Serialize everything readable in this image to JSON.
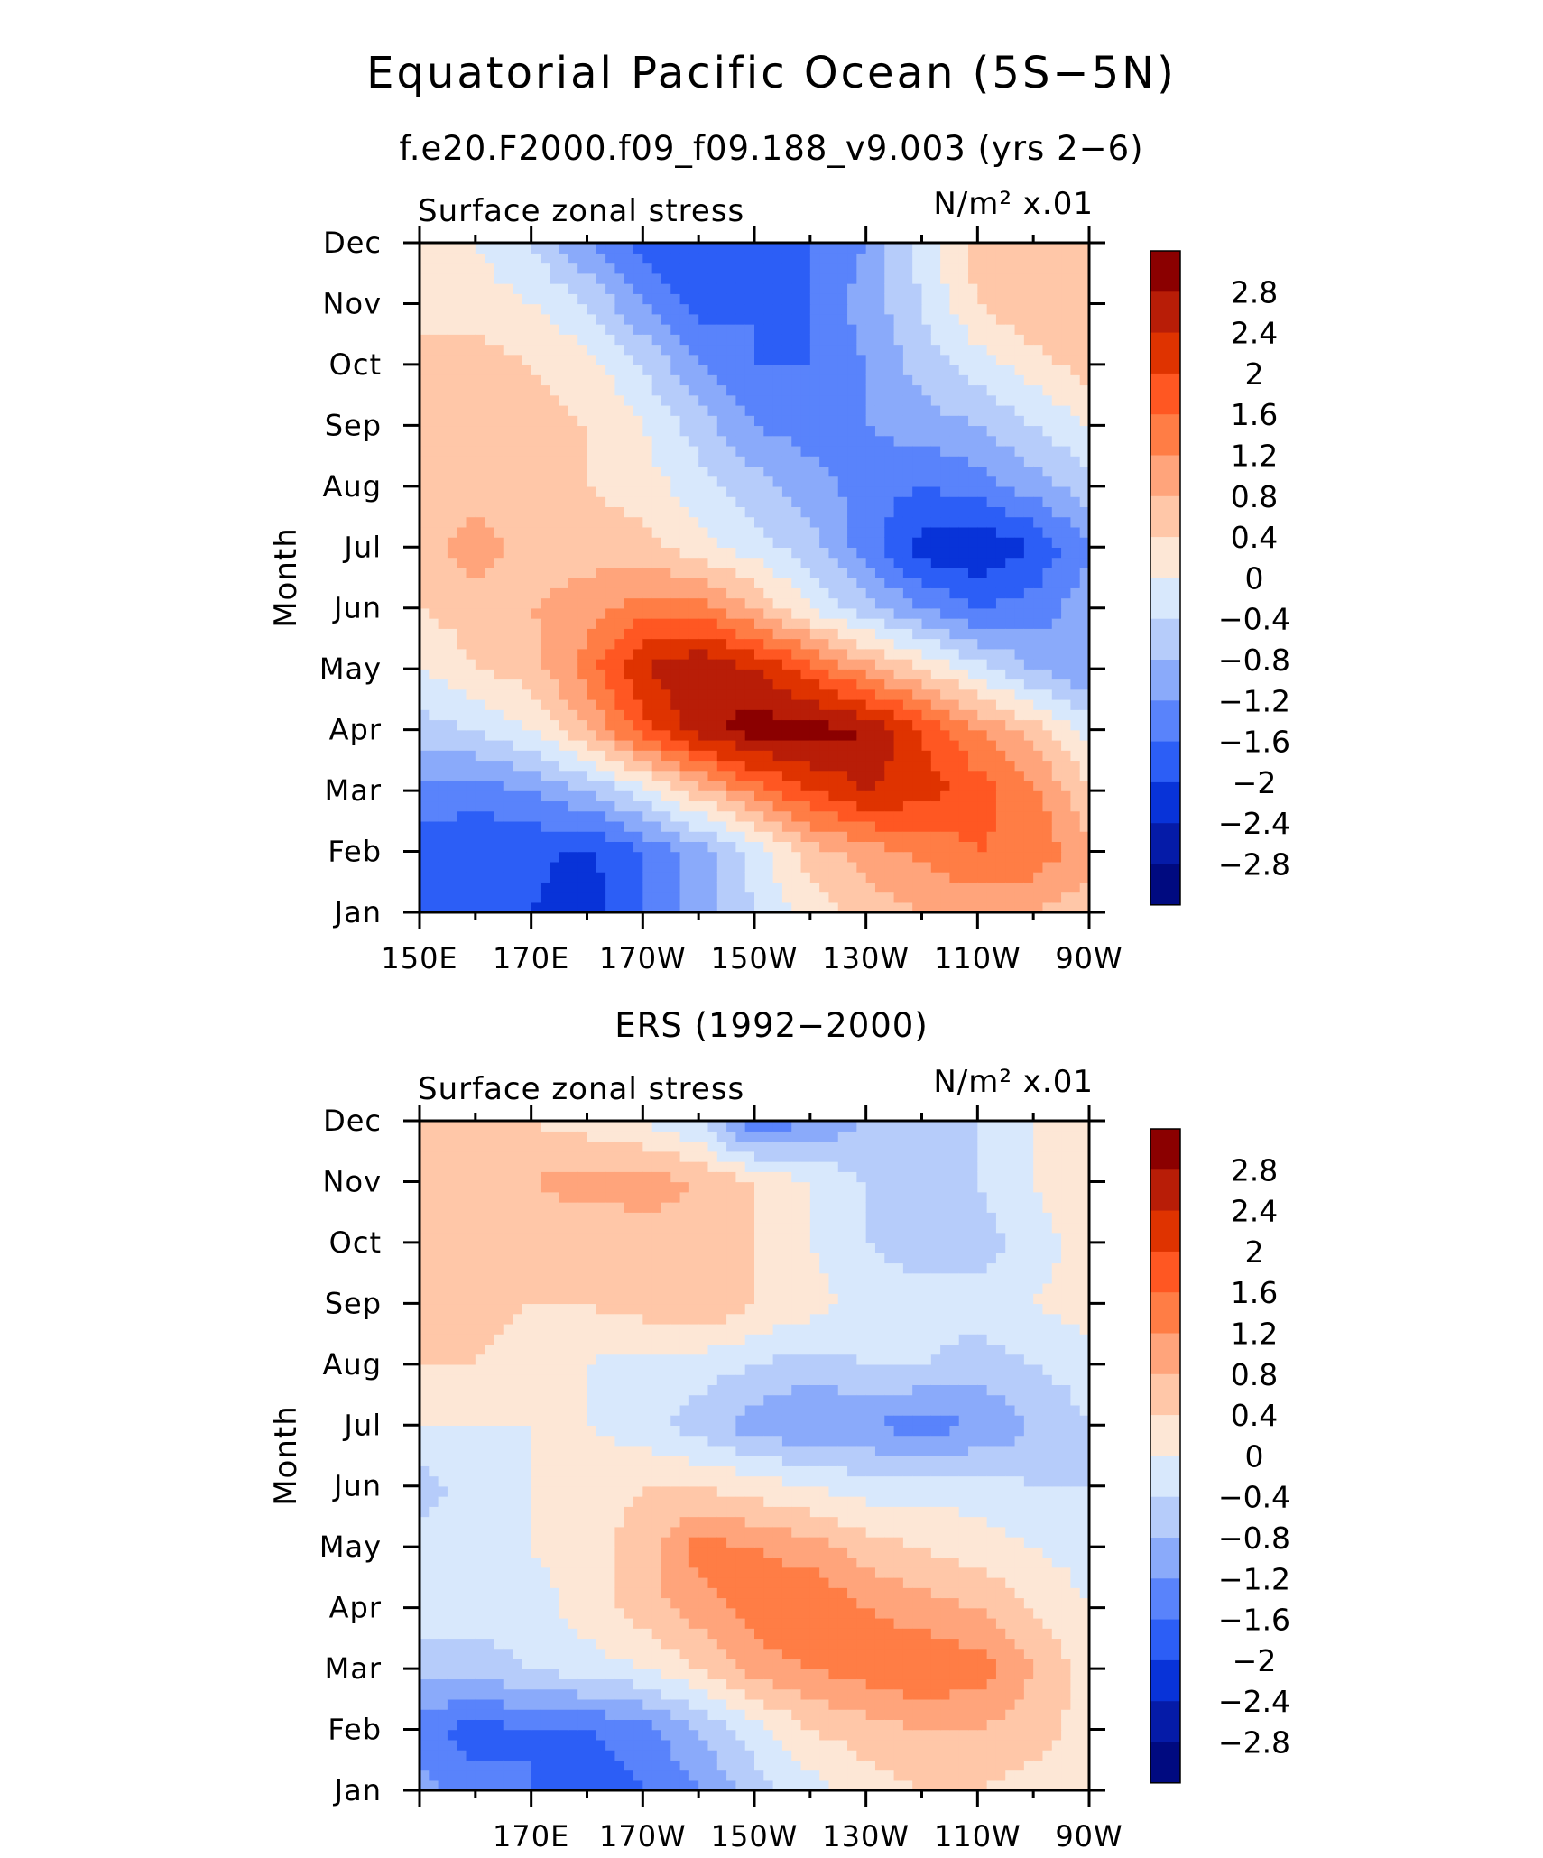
{
  "figure": {
    "title": "Equatorial Pacific Ocean (5S−5N)",
    "subtitle": "f.e20.F2000.f09_f09.188_v9.003 (yrs 2−6)"
  },
  "colorbar": {
    "labels": [
      "2.8",
      "2.4",
      "2",
      "1.6",
      "1.2",
      "0.8",
      "0.4",
      "0",
      "−0.4",
      "−0.8",
      "−1.2",
      "−1.6",
      "−2",
      "−2.4",
      "−2.8"
    ],
    "colors": [
      "#8b0000",
      "#b81d07",
      "#df3300",
      "#ff5722",
      "#ff7d45",
      "#ffa47b",
      "#ffc7a8",
      "#fde7d6",
      "#d8e8fc",
      "#b6ccfa",
      "#8aaafa",
      "#5983fb",
      "#2c5ef6",
      "#0833d8",
      "#051ba8",
      "#000a80"
    ]
  },
  "chart_data": [
    {
      "type": "heatmap",
      "title": "f.e20.F2000.f09_f09.188_v9.003 (yrs 2−6)",
      "left_label": "Surface zonal stress",
      "units_label": "N/m² x.01",
      "ylabel": "Month",
      "xlabel": "",
      "x_ticks": [
        "150E",
        "170E",
        "170W",
        "150W",
        "130W",
        "110W",
        "90W"
      ],
      "y_ticks": [
        "Jan",
        "Feb",
        "Mar",
        "Apr",
        "May",
        "Jun",
        "Jul",
        "Aug",
        "Sep",
        "Oct",
        "Nov",
        "Dec"
      ],
      "x_lon": [
        150,
        160,
        170,
        180,
        190,
        200,
        210,
        220,
        230,
        240,
        250,
        260,
        270
      ],
      "z": [
        [
          -1.6,
          -1.8,
          -2.0,
          -2.2,
          -1.6,
          -1.0,
          -0.4,
          0.2,
          0.6,
          0.8,
          0.9,
          0.8,
          0.6
        ],
        [
          -1.8,
          -2.0,
          -1.9,
          -2.1,
          -1.6,
          -1.0,
          -0.2,
          0.6,
          1.0,
          1.3,
          1.6,
          1.5,
          0.9
        ],
        [
          -1.3,
          -1.4,
          -1.2,
          -0.8,
          -0.2,
          0.6,
          1.4,
          2.0,
          2.4,
          2.2,
          1.8,
          1.3,
          0.5
        ],
        [
          -0.6,
          -0.4,
          0.0,
          0.8,
          1.8,
          2.6,
          3.0,
          3.0,
          2.8,
          2.0,
          1.2,
          0.6,
          -0.2
        ],
        [
          0.0,
          0.4,
          0.6,
          1.4,
          2.4,
          2.8,
          2.4,
          1.8,
          1.0,
          0.4,
          -0.2,
          -0.8,
          -1.2
        ],
        [
          0.4,
          0.6,
          0.8,
          1.0,
          1.4,
          1.4,
          0.8,
          0.0,
          -0.6,
          -1.2,
          -1.6,
          -1.4,
          -1.0
        ],
        [
          0.6,
          1.0,
          0.6,
          0.6,
          0.6,
          0.2,
          -0.2,
          -0.6,
          -1.4,
          -2.2,
          -2.4,
          -2.0,
          -1.2
        ],
        [
          0.4,
          0.6,
          0.6,
          0.4,
          0.2,
          -0.2,
          -0.6,
          -1.0,
          -1.4,
          -1.6,
          -1.4,
          -1.0,
          -0.6
        ],
        [
          0.4,
          0.8,
          0.6,
          0.4,
          0.0,
          -0.6,
          -1.2,
          -1.4,
          -1.2,
          -1.0,
          -0.8,
          -0.4,
          0.0
        ],
        [
          0.4,
          0.6,
          0.4,
          0.2,
          -0.4,
          -1.2,
          -1.6,
          -1.6,
          -1.2,
          -0.6,
          -0.2,
          0.2,
          0.6
        ],
        [
          0.4,
          0.2,
          0.0,
          -0.4,
          -1.2,
          -1.8,
          -1.6,
          -1.6,
          -1.0,
          -0.4,
          0.4,
          0.8,
          0.8
        ],
        [
          0.4,
          0.0,
          -0.4,
          -1.2,
          -1.8,
          -2.0,
          -1.8,
          -1.6,
          -1.2,
          -0.2,
          0.6,
          0.8,
          0.8
        ]
      ]
    },
    {
      "type": "heatmap",
      "title": "ERS (1992−2000)",
      "left_label": "Surface zonal stress",
      "units_label": "N/m² x.01",
      "ylabel": "Month",
      "xlabel": "",
      "x_ticks": [
        "170E",
        "170W",
        "150W",
        "130W",
        "110W",
        "90W"
      ],
      "y_ticks": [
        "Jan",
        "Feb",
        "Mar",
        "Apr",
        "May",
        "Jun",
        "Jul",
        "Aug",
        "Sep",
        "Oct",
        "Nov",
        "Dec"
      ],
      "x_lon": [
        150,
        160,
        170,
        180,
        190,
        200,
        210,
        220,
        230,
        240,
        250,
        260,
        270
      ],
      "z": [
        [
          -1.0,
          -1.4,
          -1.6,
          -1.8,
          -1.6,
          -1.2,
          -0.6,
          -0.2,
          0.2,
          0.4,
          0.4,
          0.2,
          0.0
        ],
        [
          -1.4,
          -1.8,
          -1.6,
          -1.6,
          -1.4,
          -0.8,
          -0.2,
          0.4,
          0.6,
          0.8,
          0.8,
          0.6,
          0.2
        ],
        [
          -0.6,
          -0.6,
          -0.4,
          -0.2,
          0.0,
          0.4,
          1.0,
          1.2,
          1.4,
          1.6,
          1.4,
          0.8,
          0.2
        ],
        [
          -0.2,
          -0.2,
          -0.2,
          0.2,
          0.6,
          1.0,
          1.4,
          1.6,
          1.2,
          1.0,
          0.8,
          0.4,
          0.0
        ],
        [
          -0.2,
          -0.2,
          0.0,
          0.2,
          0.6,
          1.4,
          1.2,
          1.0,
          0.6,
          0.4,
          0.2,
          0.0,
          -0.2
        ],
        [
          -0.6,
          -0.2,
          0.0,
          0.2,
          0.4,
          0.4,
          0.2,
          0.0,
          -0.2,
          -0.2,
          -0.2,
          -0.4,
          -0.4
        ],
        [
          0.0,
          0.0,
          0.0,
          0.0,
          -0.2,
          -0.6,
          -1.0,
          -1.2,
          -1.2,
          -1.4,
          -1.2,
          -0.8,
          -0.4
        ],
        [
          0.4,
          0.4,
          0.2,
          0.0,
          -0.2,
          -0.2,
          -0.4,
          -0.6,
          -0.4,
          -0.4,
          -0.6,
          -0.4,
          -0.2
        ],
        [
          0.4,
          0.6,
          0.4,
          0.4,
          0.6,
          0.8,
          0.4,
          0.2,
          -0.2,
          -0.2,
          -0.2,
          0.0,
          0.2
        ],
        [
          0.4,
          0.6,
          0.6,
          0.4,
          0.6,
          0.6,
          0.4,
          0.0,
          -0.4,
          -0.6,
          -0.6,
          -0.2,
          0.2
        ],
        [
          0.6,
          0.6,
          0.8,
          1.0,
          1.0,
          0.8,
          0.4,
          0.0,
          -0.4,
          -0.6,
          -0.4,
          0.0,
          0.4
        ],
        [
          0.6,
          0.8,
          0.4,
          0.2,
          0.0,
          -0.4,
          -1.6,
          -1.2,
          -0.8,
          -0.6,
          -0.4,
          0.0,
          0.4
        ]
      ]
    }
  ]
}
